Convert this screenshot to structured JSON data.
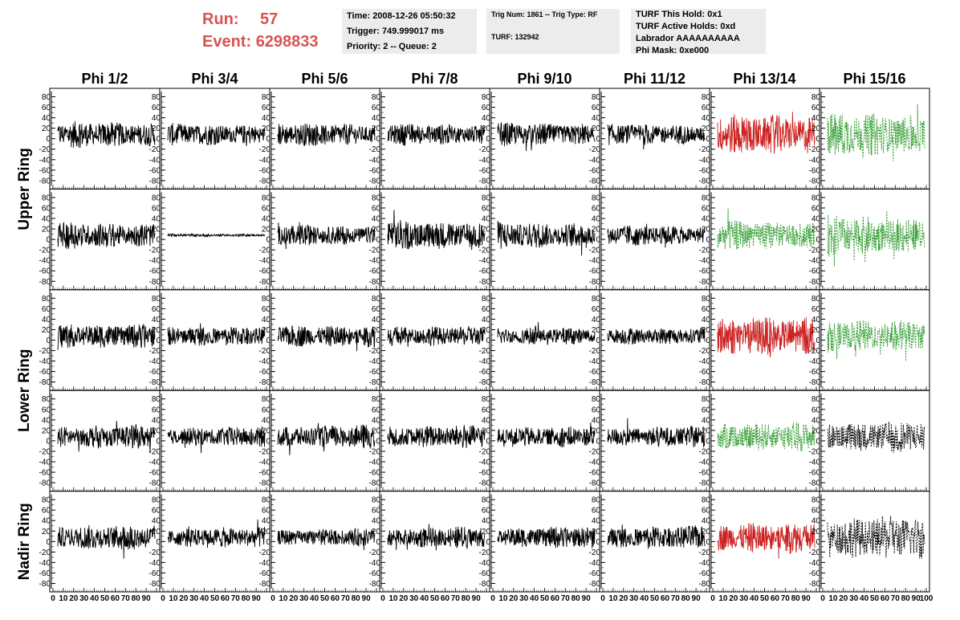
{
  "header": {
    "run_label": "Run:",
    "run_value": "57",
    "event_label": "Event:",
    "event_value": "6298833",
    "time": "Time: 2008-12-26 05:50:32",
    "trigger": "Trigger: 749.999017 ms",
    "priority": "Priority: 2 -- Queue: 2",
    "trig_num": "Trig Num: 1861 -- Trig Type: RF",
    "turf": "TURF: 132942",
    "turf_this_hold": "TURF This Hold: 0x1",
    "turf_active_holds": "TURF Active Holds: 0xd",
    "labrador": "Labrador AAAAAAAAAA",
    "phi_mask": "Phi Mask: 0xe000"
  },
  "chart_data": {
    "type": "line",
    "columns": [
      "Phi 1/2",
      "Phi 3/4",
      "Phi 5/6",
      "Phi 7/8",
      "Phi 9/10",
      "Phi 11/12",
      "Phi 13/14",
      "Phi 15/16"
    ],
    "ring_labels": [
      "Upper Ring",
      "Lower Ring",
      "Nadir Ring"
    ],
    "ylim": [
      -90,
      90
    ],
    "yticks": [
      -80,
      -60,
      -40,
      -20,
      0,
      20,
      40,
      60,
      80
    ],
    "xlim": [
      0,
      100
    ],
    "xticks": [
      0,
      10,
      20,
      30,
      40,
      50,
      60,
      70,
      80,
      90,
      100
    ],
    "colors": {
      "black": "#000000",
      "red": "#cc2222",
      "green": "#2a9a2a"
    },
    "panel_style": [
      [
        "black",
        "black",
        "black",
        "black",
        "black",
        "black",
        "red",
        "green-dash"
      ],
      [
        "black",
        "black",
        "black",
        "black",
        "black",
        "black",
        "green-dash",
        "green-dash"
      ],
      [
        "black",
        "black",
        "black",
        "black",
        "black",
        "black",
        "red",
        "green-dash"
      ],
      [
        "black",
        "black",
        "black",
        "black",
        "black",
        "black",
        "green-dash",
        "black-dash"
      ],
      [
        "black",
        "black",
        "black",
        "black",
        "black",
        "black",
        "red",
        "black-dash"
      ]
    ],
    "panel_amplitude": [
      [
        18,
        15,
        16,
        15,
        16,
        15,
        28,
        30
      ],
      [
        20,
        2,
        16,
        22,
        20,
        16,
        22,
        30
      ],
      [
        20,
        16,
        18,
        16,
        14,
        14,
        32,
        26
      ],
      [
        18,
        15,
        18,
        18,
        16,
        16,
        22,
        24
      ],
      [
        18,
        14,
        12,
        15,
        15,
        16,
        22,
        30
      ]
    ]
  }
}
